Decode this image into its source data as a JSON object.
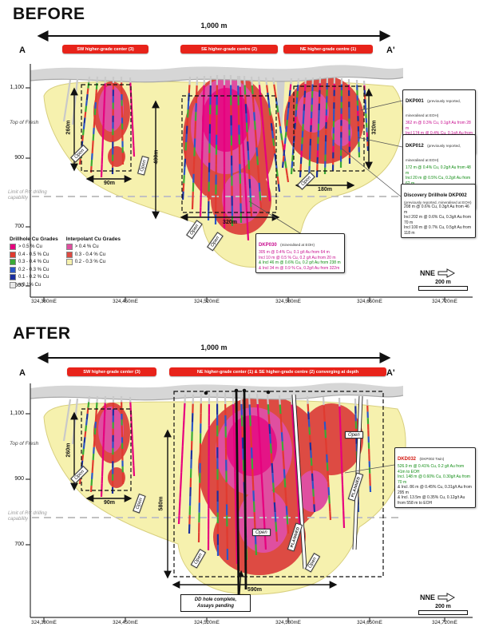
{
  "labels": {
    "open": "Open",
    "planned": "PLANNED"
  },
  "before": {
    "title": "BEFORE",
    "scale_label": "1,000 m",
    "section_left": "A",
    "section_right": "A'",
    "banners": [
      "SW higher-grade center (3)",
      "SE higher-grade centre (2)",
      "NE higher-grade centre (1)"
    ],
    "y_ticks": [
      "1,100",
      "900",
      "700",
      "500"
    ],
    "x_ticks": [
      "324,380mE",
      "324,450mE",
      "324,520mE",
      "324,580mE",
      "324,650mE",
      "324,720mE"
    ],
    "top_of_fresh": "Top of Fresh",
    "rc_limit": "Limit of RC drilling capability",
    "measurements": {
      "sw_v": "260m",
      "sw_h": "90m",
      "se_v": "400m",
      "se_h": "320m",
      "ne_h": "180m",
      "ne_v": "320m"
    },
    "callouts": {
      "dkp001": {
        "title": "DKP001",
        "subtitle": "(previously reported, mineralised at EOH)",
        "lines": [
          "362 m @ 0.3% Cu, 0.1g/t Au from 28 m",
          "Incl 174 m @ 0.4% Cu, 0.1g/t Au from 36 m",
          "Incl 32 m @ 0.6% Cu, 0.2g/t Au from 144 m"
        ]
      },
      "dkp012": {
        "title": "DKP012",
        "subtitle": "(previously reported, mineralised at EOH)",
        "lines": [
          "172 m @ 0.4% Cu, 0.2g/t Au from 48 m",
          "Incl 20 m @ 0.5% Cu, 0.2g/t Au from 62 m",
          "78 m @ 0.5% Cu, 0.1g/t Au from 228 m",
          "Incl 30 m @ 0.6% Cu, 0.2g/t Au from 232 m"
        ]
      },
      "dkp002": {
        "title": "Discovery Drillhole DKP002",
        "subtitle": "(previously reported, mineralised at EOH)",
        "lines": [
          "208 m @ 0.6% Cu, 0.3g/t Au from 46 m",
          "Incl 202 m @ 0.6% Cu, 0.3g/t Au from 70 m",
          "Incl 100 m @ 0.7% Cu, 0.5g/t Au from 118 m"
        ]
      },
      "dkp030": {
        "title": "DKP030",
        "subtitle": "(mineralised at EOH)",
        "lines": [
          "305 m @ 0.4% Cu, 0.1 g/t Au from 64 m",
          "Incl 10 m @ 0.5 % Cu, 0.2 g/t Au from 20 m",
          "& Incl 46 m @ 0.6% Cu, 0.2 g/t Au from 238 m",
          "& Incl 34 m @ 0.9 % Cu, 0.2g/t Au from 322m"
        ]
      }
    },
    "legend": {
      "drillhole_title": "Drillhole Cu Grades",
      "interpolant_title": "Interpolant Cu Grades",
      "drillhole_items": [
        {
          "label": "> 0.5 % Cu",
          "color": "#e6007e"
        },
        {
          "label": "0.4 - 0.5 % Cu",
          "color": "#e03a2f"
        },
        {
          "label": "0.3 - 0.4 % Cu",
          "color": "#3aaa35"
        },
        {
          "label": "0.2 - 0.3 % Cu",
          "color": "#2a56c6"
        },
        {
          "label": "0.1 - 0.2 % Cu",
          "color": "#1b2f9e"
        },
        {
          "label": "< 0.1% Cu",
          "color": "#e9e9e9"
        }
      ],
      "interpolant_items": [
        {
          "label": "> 0.4 % Cu",
          "color": "#df4fa0"
        },
        {
          "label": "0.3 - 0.4 % Cu",
          "color": "#dd4b43"
        },
        {
          "label": "0.2 - 0.3 % Cu",
          "color": "#f6f1ae"
        }
      ]
    },
    "compass": "NNE",
    "scalebar": "200 m"
  },
  "after": {
    "title": "AFTER",
    "scale_label": "1,000 m",
    "section_left": "A",
    "section_right": "A'",
    "banners": [
      "SW higher-grade center (3)",
      "NE higher-grade center (1) & SE higher-grade centre (2) converging at depth"
    ],
    "y_ticks": [
      "1,100",
      "900",
      "700"
    ],
    "x_ticks": [
      "324,380mE",
      "324,450mE",
      "324,520mE",
      "324,580mE",
      "324,650mE",
      "324,720mE"
    ],
    "top_of_fresh": "Top of Fresh",
    "rc_limit": "Limit of RC drilling capability",
    "measurements": {
      "sw_v": "260m",
      "sw_h": "90m",
      "c_v": "580m",
      "c_h": "590m"
    },
    "callouts": {
      "dkd032": {
        "title": "DKD032",
        "subtitle": "(DKP002 Twin)",
        "lines": [
          "526.9 m @ 0.41% Cu, 0.2 g/t Au from 41m to EOH",
          "Incl. 148 m @ 0.60% Cu, 0.30g/t Au from 70 m",
          "& Incl. 86 m @ 0.45% Cu, 0.31g/t Au from 295 m",
          "& Incl. 13.5m @ 0.35% Cu, 0.12g/t Au from 558 m to EOH"
        ]
      }
    },
    "dd_note": [
      "DD hole complete,",
      "Assays pending"
    ],
    "compass": "NNE",
    "scalebar": "200 m"
  }
}
